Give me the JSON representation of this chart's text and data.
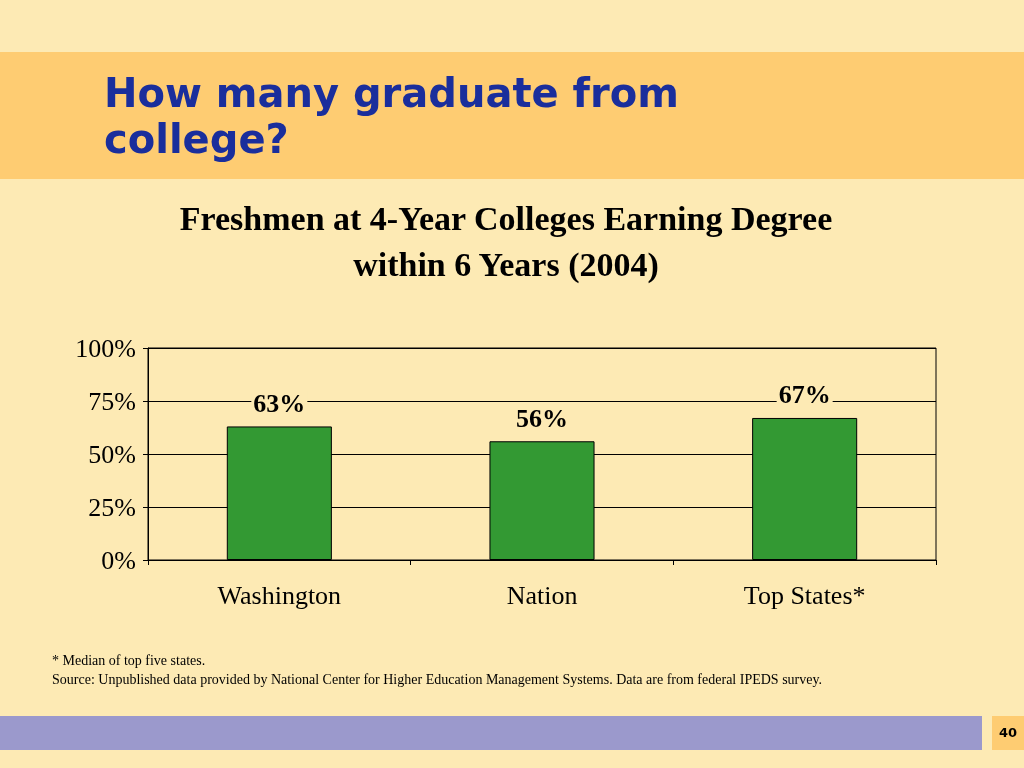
{
  "chart_data": {
    "type": "bar",
    "title": "How many graduate from college?",
    "subtitle": "Freshmen at 4-Year Colleges Earning Degree within 6 Years (2004)",
    "categories": [
      "Washington",
      "Nation",
      "Top States*"
    ],
    "values": [
      63,
      56,
      67
    ],
    "value_labels": [
      "63%",
      "56%",
      "67%"
    ],
    "color": "#339933",
    "ylim": [
      0,
      100
    ],
    "yticks": [
      {
        "value": 0,
        "label": "0%"
      },
      {
        "value": 25,
        "label": "25%"
      },
      {
        "value": 50,
        "label": "50%"
      },
      {
        "value": 75,
        "label": "75%"
      },
      {
        "value": 100,
        "label": "100%"
      }
    ],
    "grid": "y",
    "annotations": [
      "* Median of top five states.",
      "Source:  Unpublished data provided by National Center for Higher Education Management Systems.  Data are from federal IPEDS survey.",
      "40"
    ]
  }
}
